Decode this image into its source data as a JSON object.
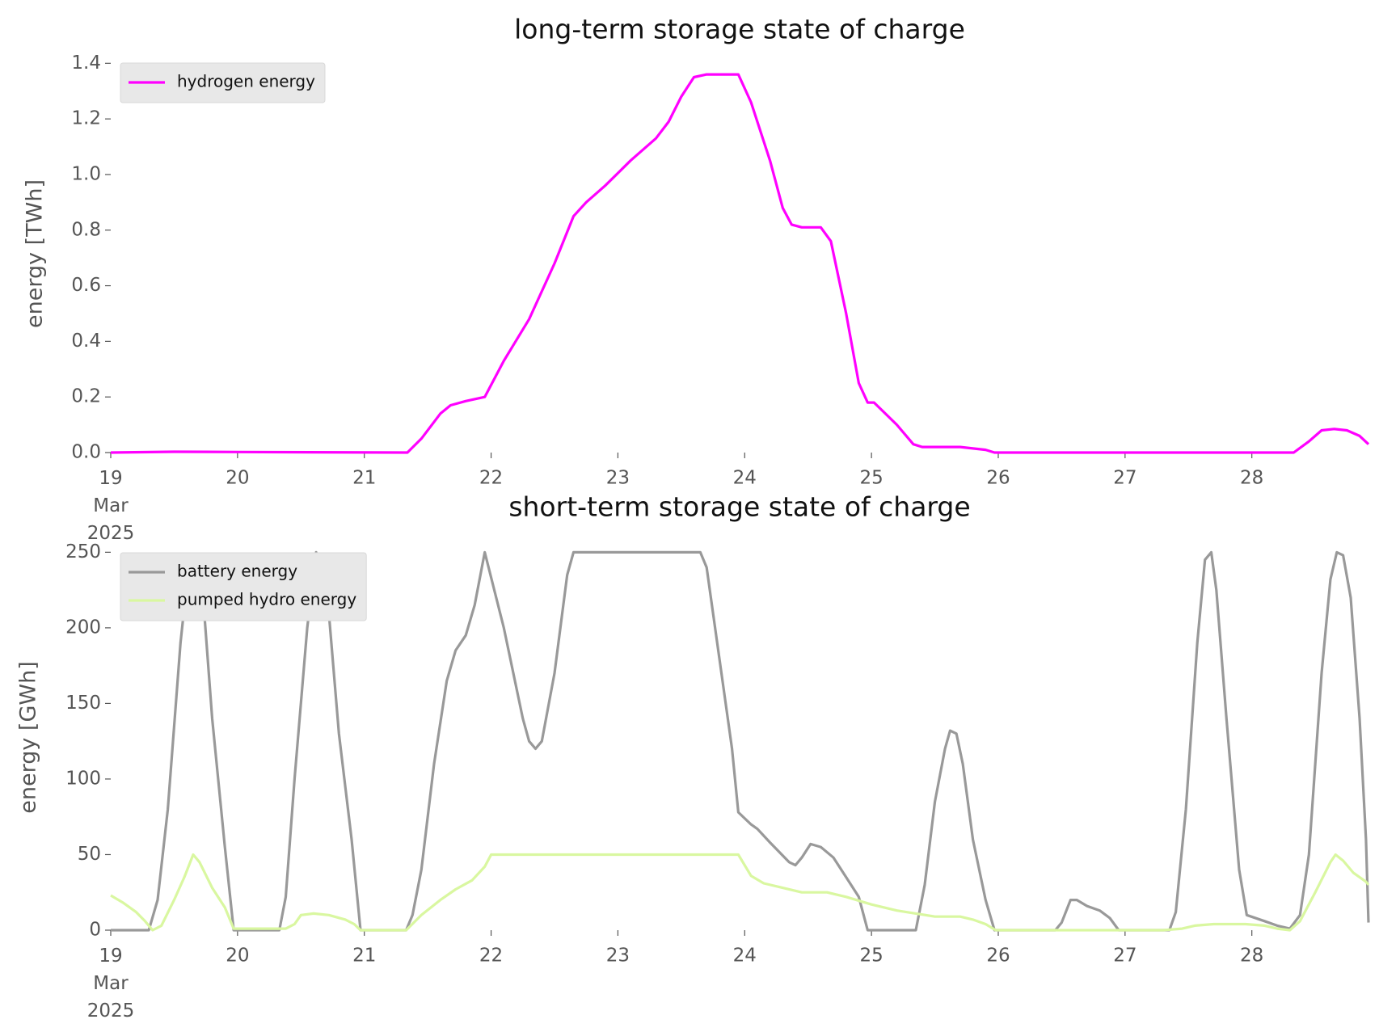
{
  "chart_data": [
    {
      "type": "line",
      "title": "long-term storage state of charge",
      "ylabel": "energy [TWh]",
      "xlim": [
        19,
        28.92
      ],
      "ylim": [
        0,
        1.43
      ],
      "xticks": [
        {
          "value": 19,
          "label": "19\nMar\n2025"
        },
        20,
        21,
        22,
        23,
        24,
        25,
        26,
        27,
        28
      ],
      "yticks": [
        {
          "value": 0,
          "label": "0.0"
        },
        0.2,
        0.4,
        0.6,
        0.8,
        {
          "value": 1,
          "label": "1.0"
        },
        1.2,
        1.4
      ],
      "legend": "upper left",
      "series": [
        {
          "name": "hydrogen energy",
          "color": "#ff00ff",
          "x": [
            19,
            19.5,
            20,
            21.34,
            21.45,
            21.6,
            21.68,
            21.8,
            21.95,
            22.1,
            22.3,
            22.5,
            22.65,
            22.75,
            22.9,
            23.1,
            23.3,
            23.4,
            23.5,
            23.6,
            23.7,
            23.95,
            24.05,
            24.2,
            24.3,
            24.37,
            24.45,
            24.6,
            24.68,
            24.8,
            24.9,
            24.97,
            25.02,
            25.2,
            25.33,
            25.4,
            25.7,
            25.9,
            25.97,
            28.33,
            28.45,
            28.55,
            28.65,
            28.75,
            28.85,
            28.92
          ],
          "values": [
            0,
            0.003,
            0.002,
            0,
            0.05,
            0.14,
            0.17,
            0.185,
            0.2,
            0.33,
            0.48,
            0.68,
            0.85,
            0.9,
            0.96,
            1.05,
            1.13,
            1.19,
            1.28,
            1.35,
            1.36,
            1.36,
            1.26,
            1.05,
            0.88,
            0.82,
            0.81,
            0.81,
            0.76,
            0.5,
            0.25,
            0.18,
            0.18,
            0.1,
            0.03,
            0.02,
            0.02,
            0.01,
            0,
            0,
            0.04,
            0.08,
            0.085,
            0.08,
            0.06,
            0.03
          ]
        }
      ]
    },
    {
      "type": "line",
      "title": "short-term storage state of charge",
      "ylabel": "energy [GWh]",
      "xlim": [
        19,
        28.92
      ],
      "ylim": [
        0,
        255
      ],
      "xticks": [
        {
          "value": 19,
          "label": "19\nMar\n2025"
        },
        20,
        21,
        22,
        23,
        24,
        25,
        26,
        27,
        28
      ],
      "yticks": [
        0,
        50,
        100,
        150,
        200,
        250
      ],
      "legend": "upper left",
      "series": [
        {
          "name": "battery energy",
          "color": "#999999",
          "x": [
            19,
            19.3,
            19.37,
            19.45,
            19.55,
            19.62,
            19.67,
            19.72,
            19.8,
            19.9,
            19.97,
            20.33,
            20.38,
            20.45,
            20.55,
            20.62,
            20.67,
            20.72,
            20.8,
            20.9,
            20.97,
            21.33,
            21.38,
            21.45,
            21.55,
            21.65,
            21.72,
            21.8,
            21.87,
            21.95,
            22.1,
            22.25,
            22.3,
            22.35,
            22.4,
            22.5,
            22.6,
            22.65,
            23.65,
            23.7,
            23.8,
            23.9,
            23.95,
            24.05,
            24.1,
            24.2,
            24.35,
            24.4,
            24.45,
            24.52,
            24.6,
            24.7,
            24.8,
            24.9,
            24.97,
            25.35,
            25.42,
            25.5,
            25.58,
            25.62,
            25.67,
            25.72,
            25.8,
            25.9,
            25.97,
            26.45,
            26.5,
            26.57,
            26.62,
            26.7,
            26.8,
            26.88,
            26.95,
            27.35,
            27.4,
            27.48,
            27.57,
            27.63,
            27.68,
            27.72,
            27.8,
            27.9,
            27.96,
            28.1,
            28.2,
            28.3,
            28.38,
            28.45,
            28.55,
            28.62,
            28.67,
            28.72,
            28.78,
            28.85,
            28.9,
            28.92
          ],
          "values": [
            0,
            0,
            20,
            80,
            190,
            245,
            248,
            230,
            140,
            55,
            0,
            0,
            22,
            100,
            200,
            250,
            240,
            210,
            130,
            60,
            0,
            0,
            10,
            40,
            110,
            165,
            185,
            195,
            215,
            250,
            200,
            140,
            125,
            120,
            125,
            170,
            235,
            250,
            250,
            240,
            180,
            120,
            78,
            70,
            67,
            58,
            45,
            43,
            48,
            57,
            55,
            48,
            35,
            22,
            0,
            0,
            30,
            85,
            120,
            132,
            130,
            110,
            60,
            20,
            0,
            0,
            5,
            20,
            20,
            16,
            13,
            8,
            0,
            0,
            12,
            80,
            190,
            245,
            250,
            225,
            140,
            40,
            10,
            6,
            3,
            1,
            10,
            50,
            170,
            232,
            250,
            248,
            220,
            140,
            60,
            5
          ]
        },
        {
          "name": "pumped hydro energy",
          "color": "#d9f7a0",
          "x": [
            19,
            19.1,
            19.2,
            19.27,
            19.33,
            19.4,
            19.5,
            19.58,
            19.65,
            19.7,
            19.8,
            19.9,
            19.97,
            20.38,
            20.45,
            20.5,
            20.6,
            20.72,
            20.85,
            20.92,
            20.97,
            21.33,
            21.45,
            21.6,
            21.72,
            21.85,
            21.95,
            22,
            23.95,
            24.05,
            24.15,
            24.3,
            24.45,
            24.65,
            24.8,
            25,
            25.2,
            25.35,
            25.5,
            25.7,
            25.8,
            25.9,
            25.98,
            27.3,
            27.45,
            27.55,
            27.7,
            27.95,
            28.1,
            28.2,
            28.3,
            28.38,
            28.5,
            28.62,
            28.66,
            28.72,
            28.8,
            28.9,
            28.92
          ],
          "values": [
            23,
            18,
            12,
            6,
            0,
            3,
            20,
            35,
            50,
            45,
            28,
            15,
            1,
            1,
            4,
            10,
            11,
            10,
            7,
            4,
            0,
            0,
            10,
            20,
            27,
            33,
            42,
            50,
            50,
            36,
            31,
            28,
            25,
            25,
            22,
            17,
            13,
            11,
            9,
            9,
            7,
            4,
            0,
            0,
            1,
            3,
            4,
            4,
            3,
            1,
            0,
            6,
            25,
            45,
            50,
            46,
            38,
            32,
            30
          ]
        }
      ]
    }
  ]
}
